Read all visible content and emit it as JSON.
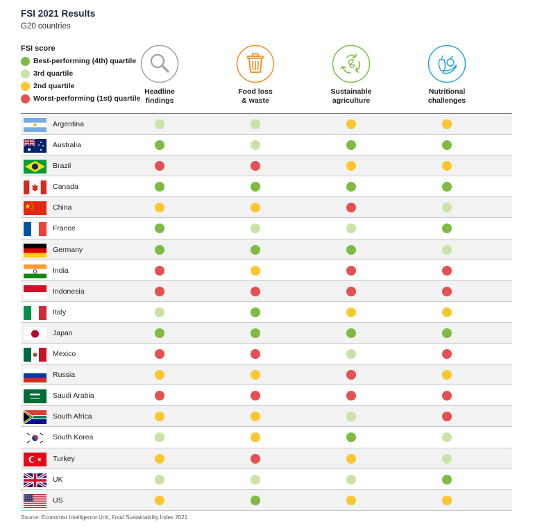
{
  "title": "FSI 2021 Results",
  "subtitle": "G20 countries",
  "colors": {
    "best": "#7dbc42",
    "third": "#c8e3a5",
    "second": "#fcc62f",
    "worst": "#e55050"
  },
  "legend": {
    "heading": "FSI score",
    "items": [
      {
        "label": "Best-performing (4th) quartile",
        "key": "best"
      },
      {
        "label": "3rd quartile",
        "key": "third"
      },
      {
        "label": "2nd quartile",
        "key": "second"
      },
      {
        "label": "Worst-performing (1st) quartile",
        "key": "worst"
      }
    ]
  },
  "chart_data": {
    "type": "table",
    "columns": [
      {
        "label": "Headline\nfindings",
        "icon": "magnifier-icon",
        "icon_color": "#a0a0a0"
      },
      {
        "label": "Food loss\n& waste",
        "icon": "trash-bin-icon",
        "icon_color": "#f28a1f"
      },
      {
        "label": "Sustainable\nagriculture",
        "icon": "recycle-leaves-icon",
        "icon_color": "#7dbc42"
      },
      {
        "label": "Nutritional\nchallenges",
        "icon": "fruit-icon",
        "icon_color": "#29a3dc"
      }
    ],
    "rows": [
      {
        "country": "Argentina",
        "flag": "argentina-flag",
        "scores": [
          "third",
          "third",
          "second",
          "second"
        ]
      },
      {
        "country": "Australia",
        "flag": "australia-flag",
        "scores": [
          "best",
          "third",
          "best",
          "best"
        ]
      },
      {
        "country": "Brazil",
        "flag": "brazil-flag",
        "scores": [
          "worst",
          "worst",
          "second",
          "second"
        ]
      },
      {
        "country": "Canada",
        "flag": "canada-flag",
        "scores": [
          "best",
          "best",
          "best",
          "best"
        ]
      },
      {
        "country": "China",
        "flag": "china-flag",
        "scores": [
          "second",
          "second",
          "worst",
          "third"
        ]
      },
      {
        "country": "France",
        "flag": "france-flag",
        "scores": [
          "best",
          "third",
          "third",
          "best"
        ]
      },
      {
        "country": "Germany",
        "flag": "germany-flag",
        "scores": [
          "best",
          "best",
          "best",
          "third"
        ]
      },
      {
        "country": "India",
        "flag": "india-flag",
        "scores": [
          "worst",
          "second",
          "worst",
          "worst"
        ]
      },
      {
        "country": "Indonesia",
        "flag": "indonesia-flag",
        "scores": [
          "worst",
          "worst",
          "worst",
          "worst"
        ]
      },
      {
        "country": "Italy",
        "flag": "italy-flag",
        "scores": [
          "third",
          "best",
          "second",
          "second"
        ]
      },
      {
        "country": "Japan",
        "flag": "japan-flag",
        "scores": [
          "best",
          "best",
          "best",
          "best"
        ]
      },
      {
        "country": "Mexico",
        "flag": "mexico-flag",
        "scores": [
          "worst",
          "worst",
          "third",
          "worst"
        ]
      },
      {
        "country": "Russia",
        "flag": "russia-flag",
        "scores": [
          "second",
          "second",
          "worst",
          "second"
        ]
      },
      {
        "country": "Saudi Arabia",
        "flag": "saudi-arabia-flag",
        "scores": [
          "worst",
          "worst",
          "worst",
          "worst"
        ]
      },
      {
        "country": "South Africa",
        "flag": "south-africa-flag",
        "scores": [
          "second",
          "second",
          "third",
          "worst"
        ]
      },
      {
        "country": "South Korea",
        "flag": "south-korea-flag",
        "scores": [
          "third",
          "second",
          "best",
          "third"
        ]
      },
      {
        "country": "Turkey",
        "flag": "turkey-flag",
        "scores": [
          "second",
          "worst",
          "second",
          "third"
        ]
      },
      {
        "country": "UK",
        "flag": "uk-flag",
        "scores": [
          "third",
          "third",
          "third",
          "best"
        ]
      },
      {
        "country": "US",
        "flag": "us-flag",
        "scores": [
          "second",
          "best",
          "second",
          "second"
        ]
      }
    ]
  },
  "source": "Source: Economist Intelligence Unit, Food Sustainability Index 2021"
}
